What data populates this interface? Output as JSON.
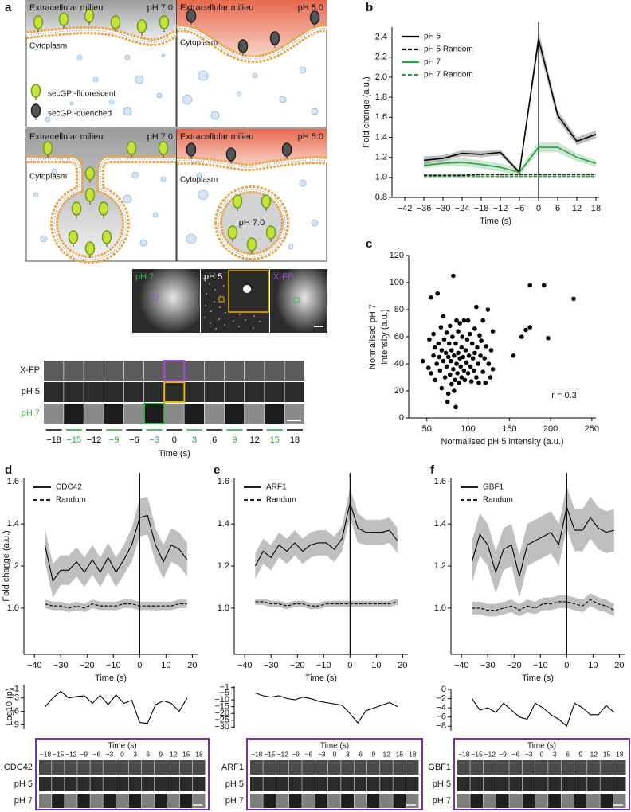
{
  "panel_labels": [
    "a",
    "b",
    "c",
    "d",
    "e",
    "f"
  ],
  "diagram": {
    "panels": [
      {
        "top": "Extracellular milieu",
        "ph": "pH 7.0",
        "bottom": "Cytoplasm"
      },
      {
        "top": "Extracellular milieu",
        "ph": "pH 5.0",
        "bottom": "Cytoplasm"
      },
      {
        "top": "Extracellular milieu",
        "ph": "pH 7.0",
        "bottom": "Cytoplasm"
      },
      {
        "top": "Extracellular milieu",
        "ph": "pH 5.0",
        "bottom": "Cytoplasm"
      }
    ],
    "legend": [
      "secGPI-fluorescent",
      "secGPI-quenched"
    ],
    "vesicle_ph": "pH 7.0"
  },
  "microscopy": {
    "images": [
      "pH 7",
      "pH 5",
      "X-FP"
    ],
    "rows": [
      "X-FP",
      "pH 5",
      "pH 7"
    ],
    "times": [
      "−18",
      "−15",
      "−12",
      "−9",
      "−6",
      "−3",
      "0",
      "3",
      "6",
      "9",
      "12",
      "15",
      "18"
    ],
    "xlabel": "Time (s)"
  },
  "strips": [
    {
      "xlabel": "Time (s)",
      "times": [
        "−18",
        "−15",
        "−12",
        "−9",
        "−6",
        "−3",
        "0",
        "3",
        "6",
        "9",
        "12",
        "15",
        "18"
      ],
      "rows": [
        "CDC42",
        "pH 5",
        "pH 7"
      ]
    },
    {
      "xlabel": "Time (s)",
      "times": [
        "−18",
        "−15",
        "−12",
        "−9",
        "−6",
        "−3",
        "0",
        "3",
        "6",
        "9",
        "12",
        "15",
        "18"
      ],
      "rows": [
        "ARF1",
        "pH 5",
        "pH 7"
      ]
    },
    {
      "xlabel": "Time (s)",
      "times": [
        "−18",
        "−15",
        "−12",
        "−9",
        "−6",
        "−3",
        "0",
        "3",
        "6",
        "9",
        "12",
        "15",
        "18"
      ],
      "rows": [
        "GBF1",
        "pH 5",
        "pH 7"
      ]
    }
  ],
  "chart_data": [
    {
      "type": "line",
      "ylabel": "Fold change (a.u.)",
      "xlabel": "Time (s)",
      "xlim": [
        -46,
        19
      ],
      "ylim": [
        0.8,
        2.5
      ],
      "xticks": [
        {
          "value": -42,
          "label": "−42"
        },
        {
          "value": -36,
          "label": "−36"
        },
        {
          "value": -30,
          "label": "−30"
        },
        {
          "value": -24,
          "label": "−24"
        },
        {
          "value": -18,
          "label": "−18"
        },
        {
          "value": -12,
          "label": "−12"
        },
        {
          "value": -6,
          "label": "−6"
        },
        0,
        6,
        12,
        18
      ],
      "yticks": [
        0.8,
        {
          "value": 1,
          "label": "1.0"
        },
        1.2,
        1.4,
        1.6,
        1.8,
        {
          "value": 2,
          "label": "2.0"
        },
        2.2,
        2.4
      ],
      "vline": 0,
      "legend": "upper left",
      "x": [
        -36,
        -30,
        -24,
        -18,
        -12,
        -6,
        0,
        6,
        12,
        18
      ],
      "series": [
        {
          "name": "pH 5",
          "color": "#000000",
          "values": [
            1.17,
            1.19,
            1.24,
            1.23,
            1.25,
            1.05,
            2.38,
            1.62,
            1.36,
            1.43
          ],
          "errors": [
            0.04,
            0.03,
            0.03,
            0.03,
            0.03,
            0.02,
            0.08,
            0.05,
            0.04,
            0.04
          ]
        },
        {
          "name": "pH 5 Random",
          "color": "#000000",
          "dashed": true,
          "values": [
            1.02,
            1.02,
            1.02,
            1.03,
            1.03,
            1.03,
            1.03,
            1.03,
            1.03,
            1.03
          ],
          "errors": [
            0.01,
            0.01,
            0.01,
            0.01,
            0.01,
            0.01,
            0.01,
            0.01,
            0.01,
            0.01
          ]
        },
        {
          "name": "pH 7",
          "color": "#2e9e4a",
          "values": [
            1.12,
            1.14,
            1.15,
            1.13,
            1.1,
            1.05,
            1.3,
            1.3,
            1.2,
            1.14
          ],
          "errors": [
            0.03,
            0.03,
            0.04,
            0.04,
            0.04,
            0.03,
            0.05,
            0.05,
            0.04,
            0.03
          ]
        },
        {
          "name": "pH 7 Random",
          "color": "#2e9e4a",
          "dashed": true,
          "values": [
            1.01,
            1.01,
            1.01,
            1.01,
            1.01,
            1.01,
            1.01,
            1.01,
            1.01,
            1.01
          ],
          "errors": [
            0.01,
            0.01,
            0.01,
            0.01,
            0.01,
            0.01,
            0.01,
            0.01,
            0.01,
            0.01
          ]
        }
      ]
    },
    {
      "type": "scatter",
      "xlabel": "Normalised pH 5 intensity (a.u.)",
      "ylabel": [
        "Normalised pH 7",
        "intensity (a.u.)"
      ],
      "annotation": "r = 0.3",
      "color": "#000000",
      "xlim": [
        28,
        255
      ],
      "ylim": [
        0,
        120
      ],
      "xticks": [
        50,
        100,
        150,
        200,
        250
      ],
      "yticks": [
        0,
        20,
        40,
        60,
        80,
        100,
        120
      ],
      "x": [
        45,
        52,
        53,
        55,
        55,
        58,
        58,
        60,
        60,
        62,
        63,
        64,
        65,
        66,
        67,
        68,
        68,
        70,
        70,
        71,
        72,
        73,
        74,
        74,
        75,
        76,
        76,
        77,
        78,
        78,
        79,
        80,
        80,
        81,
        82,
        82,
        83,
        83,
        84,
        85,
        85,
        86,
        86,
        87,
        88,
        88,
        89,
        90,
        90,
        91,
        92,
        92,
        93,
        94,
        95,
        95,
        96,
        97,
        98,
        99,
        100,
        100,
        101,
        102,
        103,
        104,
        105,
        106,
        107,
        108,
        108,
        110,
        110,
        111,
        112,
        113,
        114,
        115,
        116,
        118,
        118,
        120,
        121,
        122,
        124,
        125,
        127,
        128,
        130,
        130,
        155,
        165,
        170,
        175,
        175,
        192,
        197,
        228
      ],
      "y": [
        42,
        37,
        58,
        89,
        33,
        46,
        62,
        52,
        28,
        40,
        92,
        55,
        45,
        35,
        67,
        50,
        22,
        75,
        42,
        58,
        30,
        48,
        38,
        63,
        12,
        45,
        18,
        55,
        32,
        68,
        42,
        25,
        50,
        60,
        105,
        36,
        46,
        20,
        28,
        8,
        55,
        40,
        72,
        33,
        48,
        64,
        26,
        44,
        70,
        38,
        52,
        30,
        60,
        45,
        35,
        72,
        28,
        50,
        41,
        58,
        72,
        33,
        46,
        62,
        38,
        27,
        55,
        44,
        35,
        66,
        48,
        82,
        30,
        52,
        40,
        26,
        61,
        46,
        57,
        72,
        34,
        44,
        26,
        53,
        80,
        40,
        30,
        50,
        64,
        36,
        46,
        60,
        65,
        67,
        98,
        98,
        59,
        88
      ]
    },
    {
      "type": "line",
      "ylabel": "Fold change (a.u.)",
      "xlabel": "Time (s)",
      "xlim": [
        -44,
        22
      ],
      "ylim": [
        0.78,
        1.62
      ],
      "xticks": [
        {
          "value": -40,
          "label": "−40"
        },
        {
          "value": -30,
          "label": "−30"
        },
        {
          "value": -20,
          "label": "−20"
        },
        {
          "value": -10,
          "label": "−10"
        },
        0,
        10,
        20
      ],
      "yticks": [
        {
          "value": 1,
          "label": "1.0"
        },
        1.2,
        1.4,
        1.6
      ],
      "vline": 0,
      "legend": "upper left",
      "x": [
        -36,
        -33,
        -30,
        -27,
        -24,
        -21,
        -18,
        -15,
        -12,
        -9,
        -6,
        -3,
        0,
        3,
        6,
        9,
        12,
        15,
        18
      ],
      "series": [
        {
          "name": "CDC42",
          "color": "#000000",
          "values": [
            1.3,
            1.13,
            1.18,
            1.18,
            1.22,
            1.17,
            1.23,
            1.17,
            1.24,
            1.17,
            1.23,
            1.3,
            1.43,
            1.44,
            1.3,
            1.22,
            1.3,
            1.28,
            1.23
          ],
          "errors": [
            0.08,
            0.08,
            0.07,
            0.07,
            0.07,
            0.07,
            0.07,
            0.07,
            0.07,
            0.07,
            0.07,
            0.08,
            0.09,
            0.09,
            0.08,
            0.08,
            0.08,
            0.08,
            0.08
          ]
        },
        {
          "name": "Random",
          "color": "#000000",
          "dashed": true,
          "values": [
            1.02,
            1.01,
            1.01,
            1.0,
            1.01,
            1.0,
            1.02,
            1.01,
            1.01,
            1.01,
            1.02,
            1.02,
            1.01,
            1.01,
            1.01,
            1.01,
            1.01,
            1.02,
            1.02
          ],
          "errors": [
            0.02,
            0.02,
            0.02,
            0.02,
            0.02,
            0.02,
            0.02,
            0.02,
            0.02,
            0.02,
            0.02,
            0.02,
            0.02,
            0.02,
            0.02,
            0.02,
            0.02,
            0.02,
            0.02
          ]
        }
      ]
    },
    {
      "type": "line",
      "xlabel": "Time (s)",
      "xlim": [
        -44,
        22
      ],
      "ylim": [
        0.78,
        1.62
      ],
      "xticks": [
        {
          "value": -40,
          "label": "−40"
        },
        {
          "value": -30,
          "label": "−30"
        },
        {
          "value": -20,
          "label": "−20"
        },
        {
          "value": -10,
          "label": "−10"
        },
        0,
        10,
        20
      ],
      "yticks": [
        {
          "value": 1,
          "label": "1.0"
        },
        1.2,
        1.4,
        1.6
      ],
      "vline": 0,
      "legend": "upper left",
      "x": [
        -36,
        -33,
        -30,
        -27,
        -24,
        -21,
        -18,
        -15,
        -12,
        -9,
        -6,
        -3,
        0,
        3,
        6,
        9,
        12,
        15,
        18
      ],
      "series": [
        {
          "name": "ARF1",
          "color": "#000000",
          "values": [
            1.2,
            1.27,
            1.24,
            1.3,
            1.27,
            1.31,
            1.27,
            1.3,
            1.31,
            1.31,
            1.28,
            1.33,
            1.5,
            1.38,
            1.36,
            1.36,
            1.36,
            1.37,
            1.32
          ],
          "errors": [
            0.06,
            0.06,
            0.06,
            0.06,
            0.06,
            0.06,
            0.06,
            0.06,
            0.06,
            0.06,
            0.06,
            0.06,
            0.07,
            0.07,
            0.06,
            0.06,
            0.06,
            0.06,
            0.06
          ]
        },
        {
          "name": "Random",
          "color": "#000000",
          "dashed": true,
          "values": [
            1.03,
            1.03,
            1.02,
            1.02,
            1.01,
            1.02,
            1.02,
            1.01,
            1.01,
            1.02,
            1.02,
            1.02,
            1.02,
            1.02,
            1.02,
            1.02,
            1.02,
            1.02,
            1.03
          ],
          "errors": [
            0.015,
            0.015,
            0.015,
            0.015,
            0.015,
            0.015,
            0.015,
            0.015,
            0.015,
            0.015,
            0.015,
            0.015,
            0.015,
            0.015,
            0.015,
            0.015,
            0.015,
            0.015,
            0.015
          ]
        }
      ]
    },
    {
      "type": "line",
      "xlabel": "Time (s)",
      "xlim": [
        -44,
        22
      ],
      "ylim": [
        0.78,
        1.62
      ],
      "xticks": [
        {
          "value": -40,
          "label": "−40"
        },
        {
          "value": -30,
          "label": "−30"
        },
        {
          "value": -20,
          "label": "−20"
        },
        {
          "value": -10,
          "label": "−10"
        },
        0,
        10,
        20
      ],
      "yticks": [
        {
          "value": 1,
          "label": "1.0"
        },
        1.2,
        1.4,
        1.6
      ],
      "vline": 0,
      "legend": "upper left",
      "x": [
        -36,
        -33,
        -30,
        -27,
        -24,
        -21,
        -18,
        -15,
        -12,
        -9,
        -6,
        -3,
        0,
        3,
        6,
        9,
        12,
        15,
        18
      ],
      "series": [
        {
          "name": "GBF1",
          "color": "#000000",
          "values": [
            1.22,
            1.35,
            1.3,
            1.17,
            1.28,
            1.3,
            1.15,
            1.3,
            1.32,
            1.34,
            1.36,
            1.3,
            1.48,
            1.37,
            1.37,
            1.43,
            1.38,
            1.36,
            1.37
          ],
          "errors": [
            0.1,
            0.1,
            0.1,
            0.1,
            0.1,
            0.1,
            0.1,
            0.1,
            0.1,
            0.1,
            0.1,
            0.1,
            0.1,
            0.1,
            0.1,
            0.1,
            0.1,
            0.1,
            0.1
          ]
        },
        {
          "name": "Random",
          "color": "#000000",
          "dashed": true,
          "values": [
            1.0,
            1.0,
            0.99,
            0.99,
            1.0,
            1.01,
            0.99,
            1.01,
            1.0,
            1.02,
            1.02,
            1.03,
            1.03,
            1.02,
            1.01,
            1.04,
            1.02,
            1.01,
            0.99
          ],
          "errors": [
            0.03,
            0.03,
            0.03,
            0.03,
            0.03,
            0.03,
            0.03,
            0.03,
            0.03,
            0.03,
            0.03,
            0.03,
            0.03,
            0.03,
            0.03,
            0.03,
            0.03,
            0.03,
            0.03
          ]
        }
      ]
    },
    {
      "type": "line",
      "ylabel": "Log10 (p)",
      "xlim": [
        -44,
        22
      ],
      "ylim": [
        -10,
        0
      ],
      "yticks": [
        {
          "value": -1,
          "label": "−1"
        },
        {
          "value": -3,
          "label": "−3"
        },
        {
          "value": -6,
          "label": "−6"
        },
        {
          "value": -9,
          "label": "−9"
        }
      ],
      "x": [
        -36,
        -33,
        -30,
        -27,
        -24,
        -21,
        -18,
        -15,
        -12,
        -9,
        -6,
        -3,
        0,
        3,
        6,
        9,
        12,
        15,
        18
      ],
      "series": [
        {
          "color": "#000000",
          "values": [
            -5,
            -3,
            -1.5,
            -3,
            -2.7,
            -2.5,
            -4.2,
            -2.4,
            -4.5,
            -2.3,
            -4.2,
            -3.5,
            -8.5,
            -8.7,
            -4.5,
            -3.6,
            -4.2,
            -6,
            -3
          ]
        }
      ]
    },
    {
      "type": "line",
      "xlim": [
        -44,
        22
      ],
      "ylim": [
        -31,
        0
      ],
      "yticks": [
        {
          "value": -1,
          "label": "−1"
        },
        {
          "value": -5,
          "label": "−5"
        },
        {
          "value": -10,
          "label": "−10"
        },
        {
          "value": -15,
          "label": "−15"
        },
        {
          "value": -20,
          "label": "−20"
        },
        {
          "value": -25,
          "label": "−25"
        },
        {
          "value": -30,
          "label": "−30"
        }
      ],
      "x": [
        -36,
        -33,
        -30,
        -27,
        -24,
        -21,
        -18,
        -15,
        -12,
        -9,
        -6,
        -3,
        0,
        3,
        6,
        9,
        12,
        15,
        18
      ],
      "series": [
        {
          "color": "#000000",
          "values": [
            -5,
            -7,
            -8,
            -7,
            -9,
            -10,
            -8,
            -9,
            -11,
            -12,
            -13,
            -14,
            -20,
            -27,
            -18,
            -16,
            -14,
            -12,
            -15
          ]
        }
      ]
    },
    {
      "type": "line",
      "xlim": [
        -44,
        22
      ],
      "ylim": [
        -9,
        0
      ],
      "yticks": [
        0,
        {
          "value": -2,
          "label": "−2"
        },
        {
          "value": -4,
          "label": "−4"
        },
        {
          "value": -6,
          "label": "−6"
        },
        {
          "value": -8,
          "label": "−8"
        }
      ],
      "x": [
        -36,
        -33,
        -30,
        -27,
        -24,
        -21,
        -18,
        -15,
        -12,
        -9,
        -6,
        -3,
        0,
        3,
        6,
        9,
        12,
        15,
        18
      ],
      "series": [
        {
          "color": "#000000",
          "values": [
            -2,
            -4.5,
            -4,
            -5,
            -3,
            -4.5,
            -6,
            -6.5,
            -3,
            -4,
            -5.5,
            -6.5,
            -8,
            -3,
            -4,
            -5.5,
            -5.5,
            -3.5,
            -5
          ]
        }
      ]
    }
  ]
}
